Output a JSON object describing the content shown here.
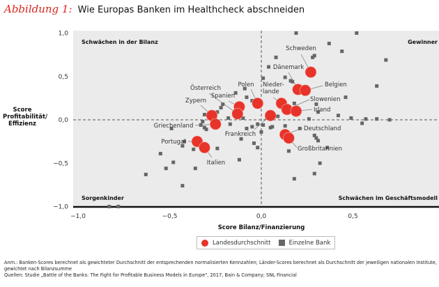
{
  "title": {
    "figure": "Abbildung 1:",
    "text": "Wie Europas Banken im Healthcheck abschneiden"
  },
  "chart_data": {
    "type": "scatter",
    "xlabel": "Score Bilanz/Finanzierung",
    "ylabel": "Score Profitabilität/ Effizienz",
    "xlim": [
      -1.05,
      1.0
    ],
    "ylim": [
      -1.0,
      1.0
    ],
    "x_ticks": [
      "−1,0",
      "−0,5",
      "0,0",
      "0,5"
    ],
    "y_ticks": [
      "1,0",
      "0,5",
      "0,0",
      "−0,5",
      "−1,0"
    ],
    "quadrants": {
      "top_left": "Schwächen in der Bilanz",
      "top_right": "Gewinner",
      "bottom_left": "Sorgenkinder",
      "bottom_right": "Schwächen im Geschäftsmodell"
    },
    "legend": {
      "country": "Landesdurchschnitt",
      "bank": "Einzelne Bank",
      "placement": "bottom-center"
    },
    "colors": {
      "country": "#e8332a",
      "bank": "#666666",
      "background": "#ebebeb"
    },
    "countries": [
      {
        "name": "Schweden",
        "x": 0.27,
        "y": 0.55
      },
      {
        "name": "Dänemark",
        "x": 0.2,
        "y": 0.35
      },
      {
        "name": "Belgien",
        "x": 0.24,
        "y": 0.34
      },
      {
        "name": "Polen",
        "x": -0.02,
        "y": 0.19
      },
      {
        "name": "Nieder-\nlande",
        "x": 0.11,
        "y": 0.19
      },
      {
        "name": "Slowenien",
        "x": 0.14,
        "y": 0.12
      },
      {
        "name": "Irland",
        "x": 0.19,
        "y": 0.1
      },
      {
        "name": "Frankreich",
        "x": 0.05,
        "y": 0.05
      },
      {
        "name": "Spanien",
        "x": -0.12,
        "y": 0.15
      },
      {
        "name": "Österreich",
        "x": -0.13,
        "y": 0.07
      },
      {
        "name": "Zypern",
        "x": -0.27,
        "y": 0.05
      },
      {
        "name": "Griechenland",
        "x": -0.25,
        "y": -0.05
      },
      {
        "name": "Portugal",
        "x": -0.35,
        "y": -0.25
      },
      {
        "name": "Italien",
        "x": -0.31,
        "y": -0.32
      },
      {
        "name": "Deutschland",
        "x": 0.13,
        "y": -0.17
      },
      {
        "name": "Großbritannien",
        "x": 0.15,
        "y": -0.21
      }
    ],
    "banks": [
      [
        0.52,
        1.0
      ],
      [
        0.19,
        1.0
      ],
      [
        0.37,
        0.88
      ],
      [
        0.44,
        0.79
      ],
      [
        0.68,
        0.69
      ],
      [
        0.08,
        0.72
      ],
      [
        0.28,
        0.72
      ],
      [
        0.29,
        0.74
      ],
      [
        0.04,
        0.61
      ],
      [
        0.63,
        0.39
      ],
      [
        0.46,
        0.26
      ],
      [
        0.13,
        0.49
      ],
      [
        0.16,
        0.45
      ],
      [
        0.01,
        0.48
      ],
      [
        0.17,
        0.44
      ],
      [
        -0.09,
        0.36
      ],
      [
        -0.08,
        0.26
      ],
      [
        -0.14,
        0.31
      ],
      [
        -0.05,
        0.22
      ],
      [
        0.18,
        0.19
      ],
      [
        0.3,
        0.18
      ],
      [
        0.31,
        0.09
      ],
      [
        0.42,
        0.05
      ],
      [
        0.49,
        0.02
      ],
      [
        0.57,
        0.01
      ],
      [
        0.63,
        0.01
      ],
      [
        0.7,
        0.0
      ],
      [
        0.55,
        -0.04
      ],
      [
        -0.21,
        0.18
      ],
      [
        -0.22,
        0.14
      ],
      [
        -0.24,
        0.09
      ],
      [
        -0.31,
        0.06
      ],
      [
        -0.32,
        -0.02
      ],
      [
        -0.33,
        -0.06
      ],
      [
        -0.31,
        -0.09
      ],
      [
        -0.49,
        -0.1
      ],
      [
        -0.3,
        -0.11
      ],
      [
        -0.17,
        -0.05
      ],
      [
        -0.08,
        -0.1
      ],
      [
        -0.05,
        -0.08
      ],
      [
        -0.02,
        -0.05
      ],
      [
        0.01,
        -0.06
      ],
      [
        0.05,
        -0.09
      ],
      [
        0.06,
        -0.08
      ],
      [
        0.13,
        -0.07
      ],
      [
        0.21,
        -0.1
      ],
      [
        0.29,
        -0.18
      ],
      [
        0.3,
        -0.21
      ],
      [
        0.31,
        -0.24
      ],
      [
        0.0,
        -0.14
      ],
      [
        -0.11,
        -0.22
      ],
      [
        -0.04,
        -0.27
      ],
      [
        -0.12,
        -0.46
      ],
      [
        -0.02,
        -0.32
      ],
      [
        0.15,
        -0.36
      ],
      [
        0.36,
        -0.32
      ],
      [
        0.32,
        -0.5
      ],
      [
        0.29,
        -0.62
      ],
      [
        -0.42,
        -0.25
      ],
      [
        -0.43,
        -0.3
      ],
      [
        -0.37,
        -0.34
      ],
      [
        -0.24,
        -0.33
      ],
      [
        -0.55,
        -0.39
      ],
      [
        -0.48,
        -0.49
      ],
      [
        -0.52,
        -0.56
      ],
      [
        -0.36,
        -0.56
      ],
      [
        -0.63,
        -0.63
      ],
      [
        -0.43,
        -0.76
      ],
      [
        -0.83,
        -1.0
      ],
      [
        -0.78,
        -1.0
      ],
      [
        0.18,
        -0.68
      ],
      [
        -0.18,
        0.02
      ],
      [
        -0.1,
        0.02
      ],
      [
        0.03,
        0.02
      ],
      [
        0.09,
        0.04
      ],
      [
        0.26,
        0.01
      ]
    ]
  },
  "notes": {
    "anm": "Anm.: Banken-Scores berechnet als gewichteter Durchschnitt der entsprechenden normalisierten Kennzahlen; Länder-Scores berechnet als Durchschnitt der jeweiligen nationalen Institute, gewichtet nach Bilanzsumme",
    "quellen": "Quellen: Studie „Battle of the Banks: The Fight for Profitable Business Models in Europe\", 2017, Bain & Company; SNL Financial"
  }
}
